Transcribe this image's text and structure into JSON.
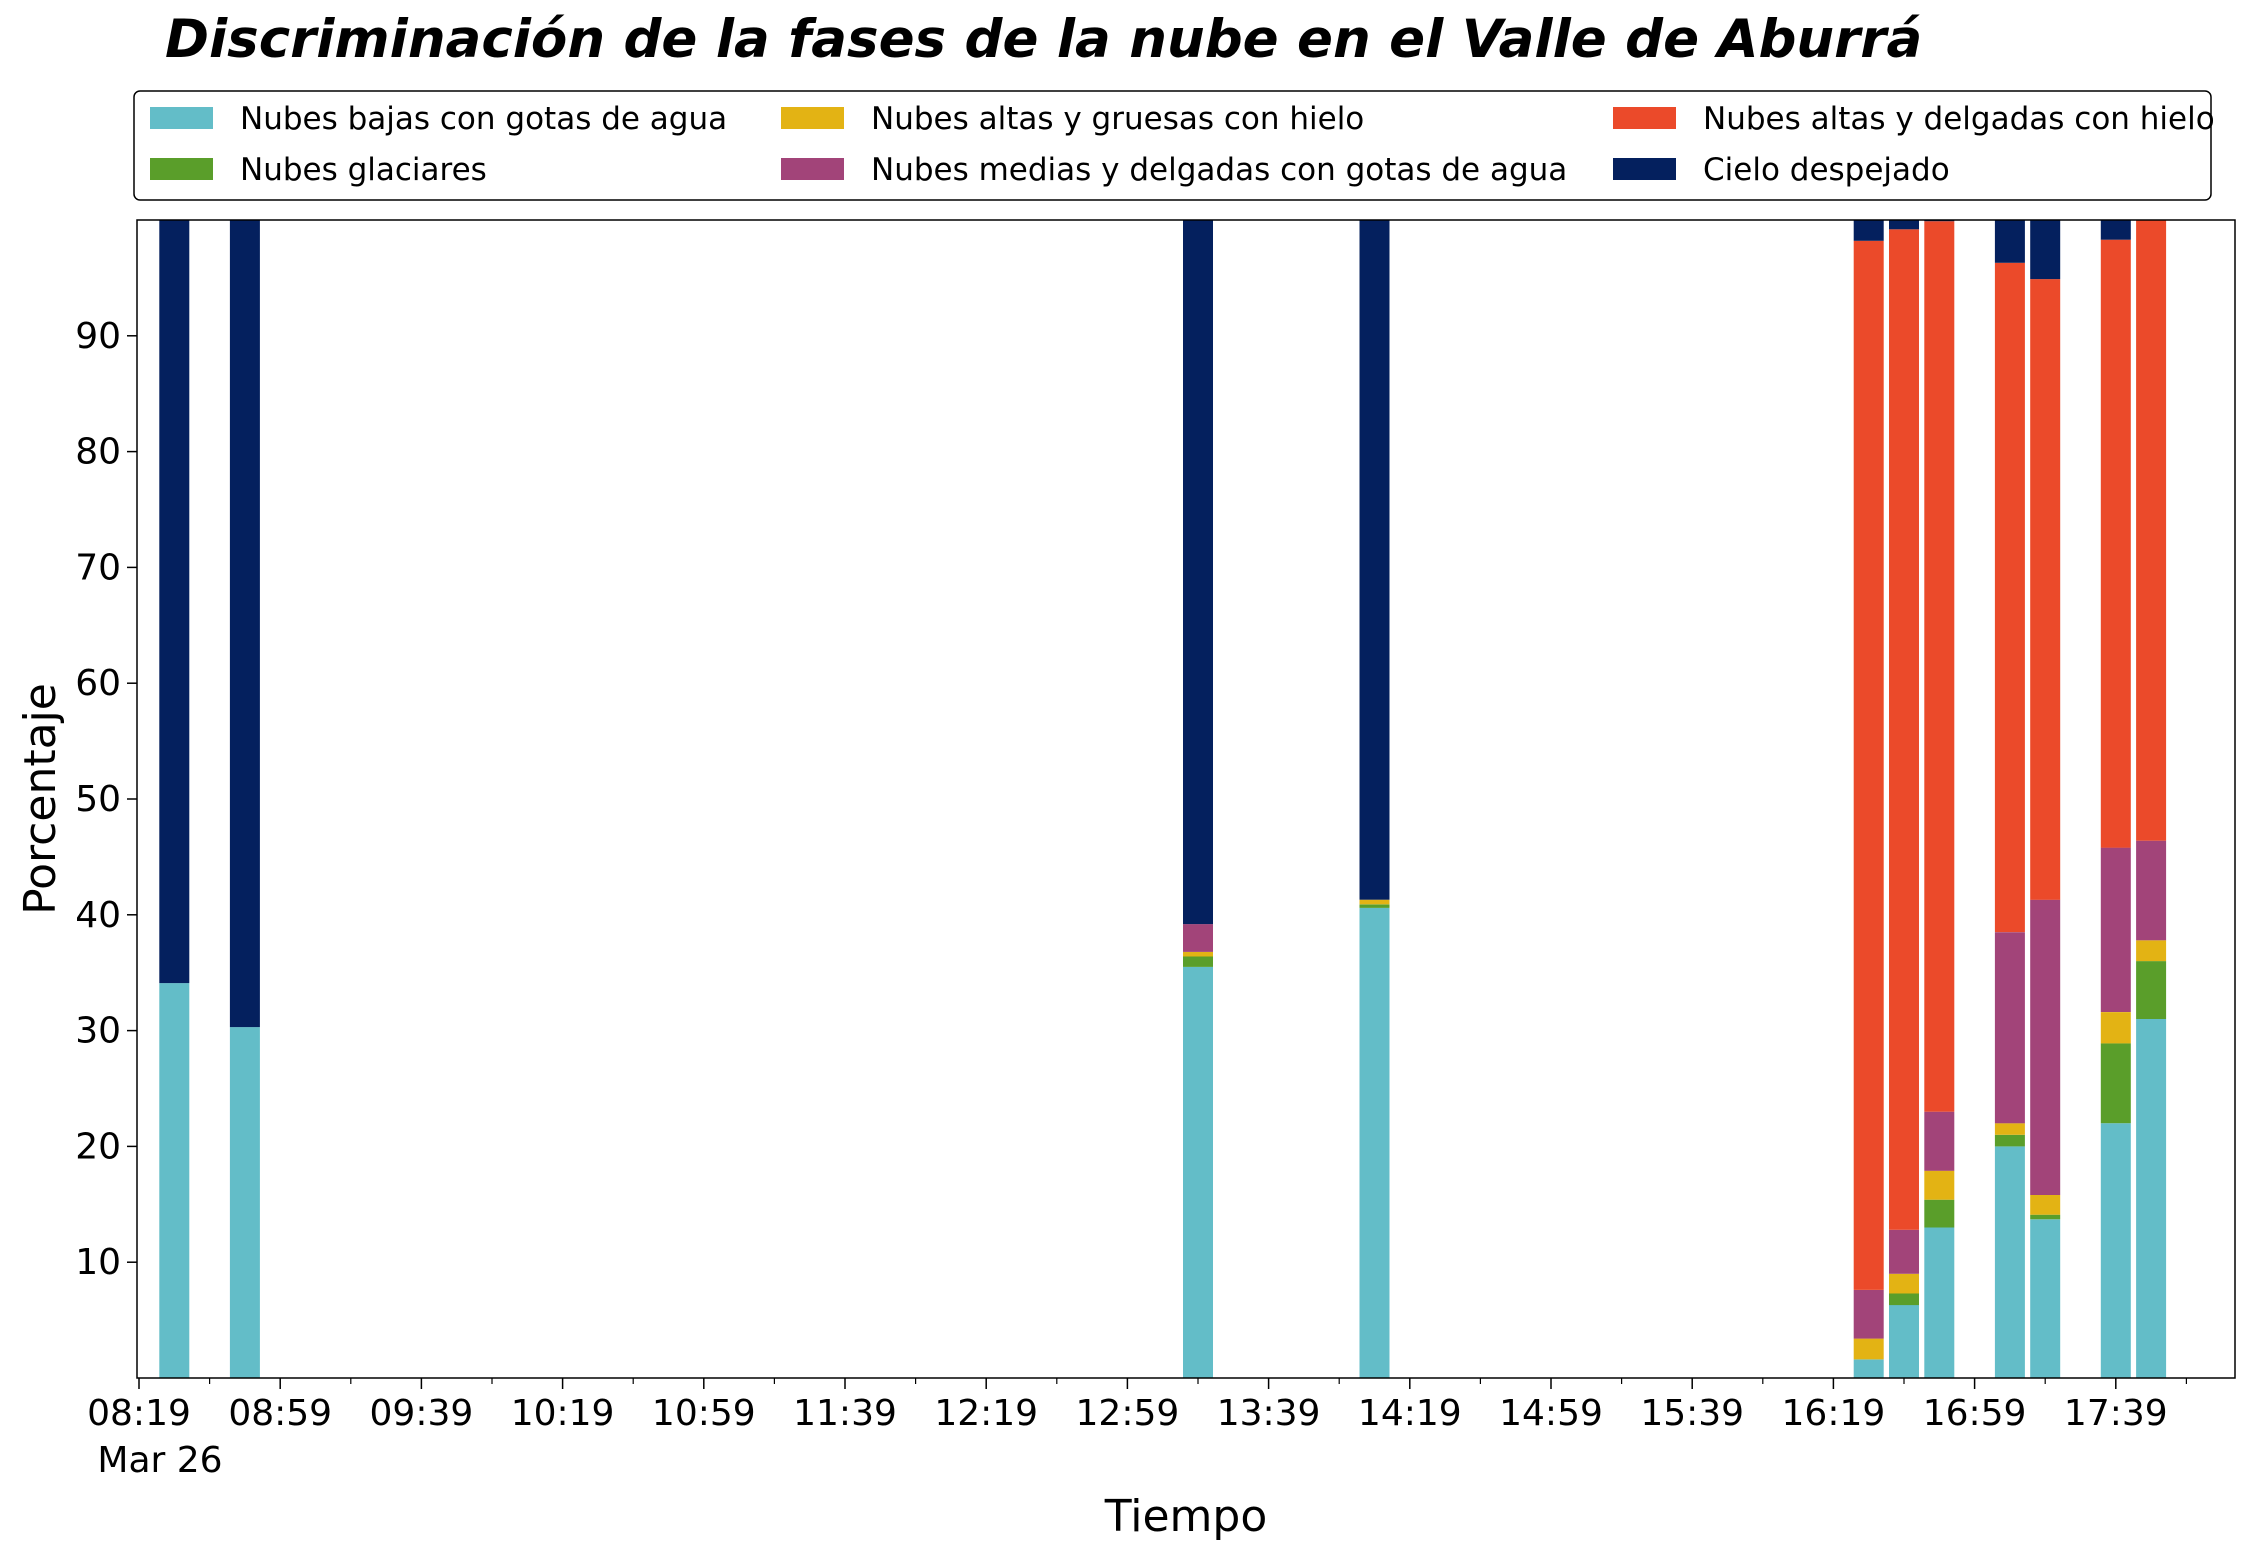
{
  "chart_data": {
    "type": "bar",
    "stacked": true,
    "title": "Discriminación de la fases de la nube en el Valle de Aburrá",
    "xlabel": "Tiempo",
    "ylabel": "Porcentaje",
    "ylim": [
      0,
      100
    ],
    "yticks": [
      10,
      20,
      30,
      40,
      50,
      60,
      70,
      80,
      90
    ],
    "x_tick_labels": [
      "08:19",
      "08:59",
      "09:39",
      "10:19",
      "10:59",
      "11:39",
      "12:19",
      "12:59",
      "13:39",
      "14:19",
      "14:59",
      "15:39",
      "16:19",
      "16:59",
      "17:39"
    ],
    "x_date_label": "Mar 26",
    "legend_position": "top",
    "grid": false,
    "x": [
      "08:29",
      "08:49",
      "13:19",
      "14:09",
      "16:29",
      "16:39",
      "16:49",
      "17:09",
      "17:19",
      "17:39",
      "17:49"
    ],
    "series": [
      {
        "name": "Nubes bajas con gotas de agua",
        "color": "#63bdc8",
        "values": [
          34.1,
          30.3,
          35.5,
          40.6,
          1.6,
          6.3,
          13.0,
          20.0,
          13.7,
          22.0,
          31.0
        ]
      },
      {
        "name": "Nubes glaciares",
        "color": "#5a9e2a",
        "values": [
          0,
          0,
          0.9,
          0.3,
          0,
          1.0,
          2.4,
          1.0,
          0.4,
          6.9,
          5.0
        ]
      },
      {
        "name": "Nubes altas y gruesas con hielo",
        "color": "#e3b314",
        "values": [
          0,
          0,
          0.4,
          0.4,
          1.8,
          1.7,
          2.5,
          1.0,
          1.7,
          2.7,
          1.8
        ]
      },
      {
        "name": "Nubes medias y delgadas con gotas de agua",
        "color": "#a24479",
        "values": [
          0,
          0,
          2.4,
          0,
          4.2,
          3.8,
          5.1,
          16.5,
          25.5,
          14.2,
          8.6
        ]
      },
      {
        "name": "Nubes altas y delgadas con hielo",
        "color": "#eb4a2a",
        "values": [
          0,
          0,
          0,
          0,
          90.6,
          86.4,
          76.9,
          57.8,
          53.6,
          52.5,
          53.6
        ]
      },
      {
        "name": "Cielo despejado",
        "color": "#04205e",
        "values": [
          65.9,
          69.7,
          60.8,
          58.7,
          1.8,
          0.8,
          0.1,
          3.7,
          5.1,
          1.7,
          0
        ]
      }
    ]
  }
}
